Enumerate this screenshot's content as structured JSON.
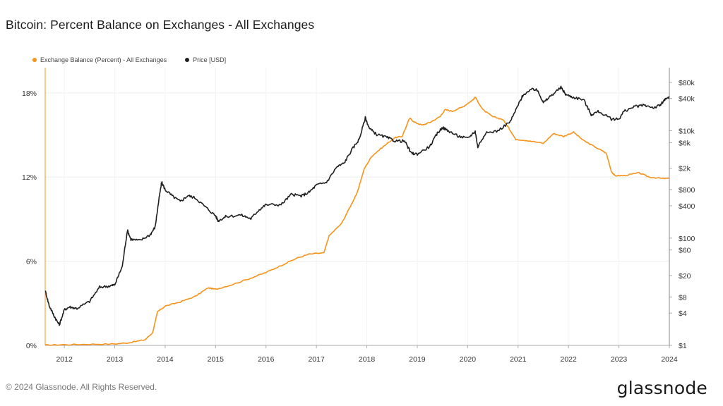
{
  "title": "Bitcoin: Percent Balance on Exchanges - All Exchanges",
  "footer": "© 2024 Glassnode. All Rights Reserved.",
  "brand": "glassnode",
  "colors": {
    "balance": "#f7931a",
    "price": "#1f1f1f",
    "grid": "#eeeeee",
    "axis": "#aaaaaa"
  },
  "chart_data": {
    "type": "line",
    "legend": [
      {
        "name": "Exchange Balance (Percent) - All Exchanges",
        "color": "#f7931a"
      },
      {
        "name": "Price [USD]",
        "color": "#1f1f1f"
      }
    ],
    "x_ticks": [
      "2012",
      "2013",
      "2014",
      "2015",
      "2016",
      "2017",
      "2018",
      "2019",
      "2020",
      "2021",
      "2022",
      "2023",
      "2024"
    ],
    "y_left_ticks": [
      {
        "label": "0%",
        "value": 0
      },
      {
        "label": "6%",
        "value": 6
      },
      {
        "label": "12%",
        "value": 12
      },
      {
        "label": "18%",
        "value": 18
      }
    ],
    "y_left_range": [
      0,
      19.8
    ],
    "y_right_ticks": [
      {
        "label": "$1",
        "value": 1
      },
      {
        "label": "$4",
        "value": 4
      },
      {
        "label": "$8",
        "value": 8
      },
      {
        "label": "$20",
        "value": 20
      },
      {
        "label": "$60",
        "value": 60
      },
      {
        "label": "$100",
        "value": 100
      },
      {
        "label": "$400",
        "value": 400
      },
      {
        "label": "$800",
        "value": 800
      },
      {
        "label": "$2k",
        "value": 2000
      },
      {
        "label": "$6k",
        "value": 6000
      },
      {
        "label": "$10k",
        "value": 10000
      },
      {
        "label": "$40k",
        "value": 40000
      },
      {
        "label": "$80k",
        "value": 80000
      }
    ],
    "y_right_scale": "log",
    "y_right_range": [
      1,
      150000
    ],
    "x_range": [
      2011.62,
      2024.0
    ],
    "grid": true,
    "series": [
      {
        "name": "Exchange Balance (Percent) - All Exchanges",
        "axis": "left",
        "points": [
          [
            2011.62,
            0.02
          ],
          [
            2012.0,
            0.05
          ],
          [
            2012.5,
            0.08
          ],
          [
            2013.0,
            0.1
          ],
          [
            2013.3,
            0.2
          ],
          [
            2013.6,
            0.4
          ],
          [
            2013.75,
            0.9
          ],
          [
            2013.85,
            2.4
          ],
          [
            2014.0,
            2.8
          ],
          [
            2014.3,
            3.1
          ],
          [
            2014.6,
            3.5
          ],
          [
            2014.85,
            4.1
          ],
          [
            2015.0,
            4.0
          ],
          [
            2015.3,
            4.3
          ],
          [
            2015.7,
            4.8
          ],
          [
            2016.0,
            5.2
          ],
          [
            2016.3,
            5.7
          ],
          [
            2016.6,
            6.2
          ],
          [
            2016.85,
            6.5
          ],
          [
            2017.15,
            6.6
          ],
          [
            2017.25,
            7.8
          ],
          [
            2017.5,
            8.7
          ],
          [
            2017.7,
            10.1
          ],
          [
            2017.8,
            10.8
          ],
          [
            2017.95,
            12.6
          ],
          [
            2018.1,
            13.5
          ],
          [
            2018.3,
            14.1
          ],
          [
            2018.55,
            14.8
          ],
          [
            2018.7,
            14.9
          ],
          [
            2018.85,
            16.2
          ],
          [
            2018.95,
            15.9
          ],
          [
            2019.1,
            15.7
          ],
          [
            2019.25,
            15.9
          ],
          [
            2019.45,
            16.3
          ],
          [
            2019.55,
            16.8
          ],
          [
            2019.7,
            16.7
          ],
          [
            2019.9,
            17.0
          ],
          [
            2020.1,
            17.5
          ],
          [
            2020.15,
            17.7
          ],
          [
            2020.3,
            16.8
          ],
          [
            2020.5,
            16.3
          ],
          [
            2020.7,
            16.1
          ],
          [
            2020.85,
            15.3
          ],
          [
            2020.95,
            14.7
          ],
          [
            2021.2,
            14.6
          ],
          [
            2021.5,
            14.4
          ],
          [
            2021.7,
            15.1
          ],
          [
            2021.9,
            14.9
          ],
          [
            2022.1,
            15.2
          ],
          [
            2022.3,
            14.6
          ],
          [
            2022.5,
            14.2
          ],
          [
            2022.75,
            13.7
          ],
          [
            2022.85,
            12.4
          ],
          [
            2022.92,
            12.1
          ],
          [
            2023.1,
            12.1
          ],
          [
            2023.4,
            12.3
          ],
          [
            2023.6,
            12.0
          ],
          [
            2023.85,
            11.9
          ],
          [
            2024.0,
            11.9
          ]
        ]
      },
      {
        "name": "Price [USD]",
        "axis": "right",
        "points": [
          [
            2011.62,
            10.5
          ],
          [
            2011.7,
            5.5
          ],
          [
            2011.8,
            3.5
          ],
          [
            2011.9,
            2.4
          ],
          [
            2012.0,
            4.6
          ],
          [
            2012.1,
            5.2
          ],
          [
            2012.25,
            4.9
          ],
          [
            2012.5,
            6.6
          ],
          [
            2012.7,
            12.2
          ],
          [
            2012.9,
            12.8
          ],
          [
            2013.0,
            13.5
          ],
          [
            2013.15,
            30
          ],
          [
            2013.25,
            140
          ],
          [
            2013.32,
            95
          ],
          [
            2013.5,
            90
          ],
          [
            2013.7,
            115
          ],
          [
            2013.8,
            160
          ],
          [
            2013.87,
            480
          ],
          [
            2013.93,
            1100
          ],
          [
            2014.0,
            800
          ],
          [
            2014.15,
            600
          ],
          [
            2014.3,
            480
          ],
          [
            2014.45,
            620
          ],
          [
            2014.6,
            560
          ],
          [
            2014.8,
            380
          ],
          [
            2015.0,
            260
          ],
          [
            2015.05,
            210
          ],
          [
            2015.2,
            250
          ],
          [
            2015.5,
            270
          ],
          [
            2015.7,
            230
          ],
          [
            2015.85,
            330
          ],
          [
            2016.0,
            420
          ],
          [
            2016.3,
            420
          ],
          [
            2016.5,
            650
          ],
          [
            2016.7,
            610
          ],
          [
            2016.85,
            710
          ],
          [
            2017.0,
            970
          ],
          [
            2017.2,
            1100
          ],
          [
            2017.4,
            2100
          ],
          [
            2017.55,
            2500
          ],
          [
            2017.7,
            4400
          ],
          [
            2017.85,
            7000
          ],
          [
            2017.97,
            17500
          ],
          [
            2018.05,
            11000
          ],
          [
            2018.2,
            8500
          ],
          [
            2018.4,
            7500
          ],
          [
            2018.55,
            6500
          ],
          [
            2018.75,
            6400
          ],
          [
            2018.88,
            3800
          ],
          [
            2019.0,
            3700
          ],
          [
            2019.25,
            5100
          ],
          [
            2019.4,
            9000
          ],
          [
            2019.5,
            11500
          ],
          [
            2019.6,
            10200
          ],
          [
            2019.8,
            8000
          ],
          [
            2020.0,
            7200
          ],
          [
            2020.15,
            9800
          ],
          [
            2020.2,
            5000
          ],
          [
            2020.35,
            9000
          ],
          [
            2020.6,
            10000
          ],
          [
            2020.85,
            15000
          ],
          [
            2021.0,
            30000
          ],
          [
            2021.1,
            47000
          ],
          [
            2021.3,
            60000
          ],
          [
            2021.4,
            55000
          ],
          [
            2021.5,
            33000
          ],
          [
            2021.65,
            45000
          ],
          [
            2021.85,
            64000
          ],
          [
            2021.95,
            47000
          ],
          [
            2022.1,
            42000
          ],
          [
            2022.3,
            38000
          ],
          [
            2022.45,
            20000
          ],
          [
            2022.6,
            23000
          ],
          [
            2022.85,
            16500
          ],
          [
            2023.0,
            16600
          ],
          [
            2023.1,
            23000
          ],
          [
            2023.3,
            28000
          ],
          [
            2023.5,
            30000
          ],
          [
            2023.7,
            27000
          ],
          [
            2023.82,
            30000
          ],
          [
            2023.9,
            37000
          ],
          [
            2024.0,
            42000
          ]
        ]
      }
    ]
  }
}
